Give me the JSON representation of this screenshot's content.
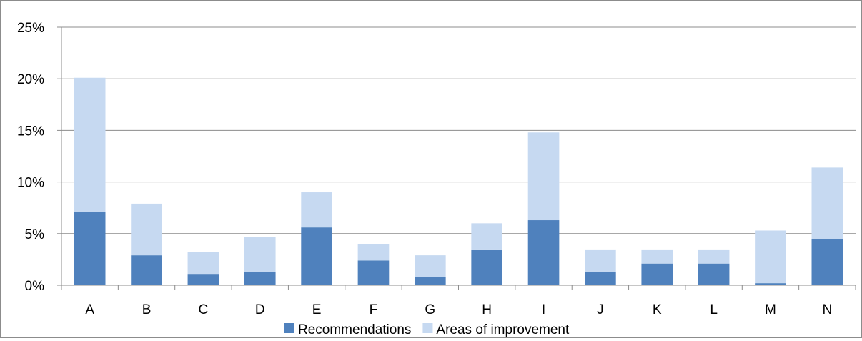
{
  "chart_data": {
    "type": "bar",
    "stacked": true,
    "categories": [
      "A",
      "B",
      "C",
      "D",
      "E",
      "F",
      "G",
      "H",
      "I",
      "J",
      "K",
      "L",
      "M",
      "N"
    ],
    "series": [
      {
        "name": "Recommendations",
        "color": "#4f81bd",
        "values": [
          7.1,
          2.9,
          1.1,
          1.3,
          5.6,
          2.4,
          0.8,
          3.4,
          6.3,
          1.3,
          2.1,
          2.1,
          0.2,
          4.5
        ]
      },
      {
        "name": "Areas of improvement",
        "color": "#c6d9f1",
        "values": [
          13.0,
          5.0,
          2.1,
          3.4,
          3.4,
          1.6,
          2.1,
          2.6,
          8.5,
          2.1,
          1.3,
          1.3,
          5.1,
          6.9
        ]
      }
    ],
    "ylim": [
      0,
      25
    ],
    "y_ticks": [
      0,
      5,
      10,
      15,
      20,
      25
    ],
    "y_tick_labels": [
      "0%",
      "5%",
      "10%",
      "15%",
      "20%",
      "25%"
    ],
    "grid": true,
    "legend": "bottom",
    "title": "",
    "xlabel": "",
    "ylabel": ""
  }
}
